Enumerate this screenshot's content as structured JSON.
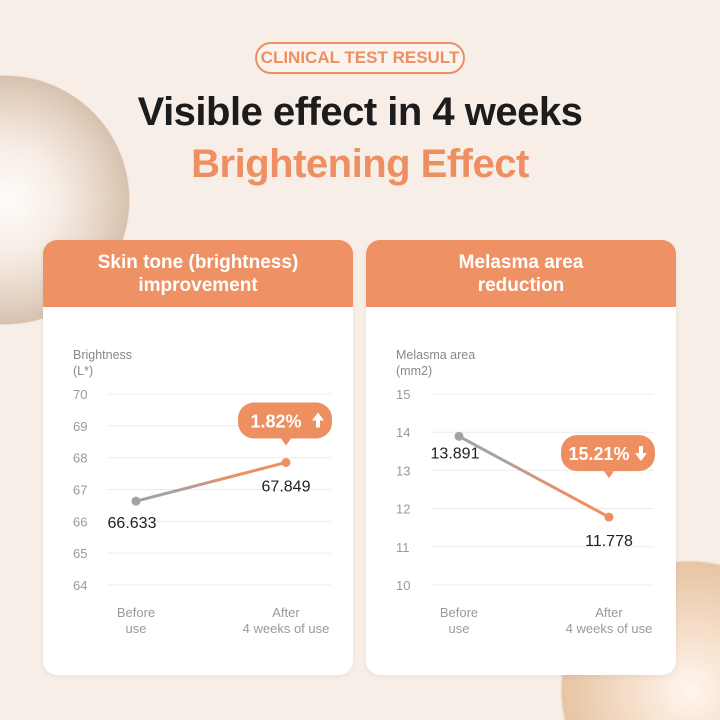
{
  "badge": "CLINICAL TEST RESULT",
  "title_line1": "Visible effect in 4 weeks",
  "title_line2": "Brightening Effect",
  "colors": {
    "accent": "#ee8f62",
    "before": "#a3a3a3",
    "grid": "#ececec",
    "background": "#f8eee8"
  },
  "chart_data": [
    {
      "type": "line",
      "header": [
        "Skin tone (brightness)",
        "improvement"
      ],
      "ylabel": [
        "Brightness",
        "(L*)"
      ],
      "ylim": [
        64,
        70
      ],
      "yticks": [
        64,
        65,
        66,
        67,
        68,
        69,
        70
      ],
      "categories": [
        [
          "Before",
          "use"
        ],
        [
          "After",
          "4 weeks of use"
        ]
      ],
      "values": [
        66.633,
        67.849
      ],
      "labels": [
        "66.633",
        "67.849"
      ],
      "callout": "1.82%",
      "callout_icon": "arrow-up-icon",
      "grid": true
    },
    {
      "type": "line",
      "header": [
        "Melasma area",
        "reduction"
      ],
      "ylabel": [
        "Melasma area",
        "(mm2)"
      ],
      "ylim": [
        10,
        15
      ],
      "yticks": [
        10,
        11,
        12,
        13,
        14,
        15
      ],
      "categories": [
        [
          "Before",
          "use"
        ],
        [
          "After",
          "4 weeks of use"
        ]
      ],
      "values": [
        13.891,
        11.778
      ],
      "labels": [
        "13.891",
        "11.778"
      ],
      "callout": "15.21%",
      "callout_icon": "arrow-down-icon",
      "grid": true
    }
  ]
}
